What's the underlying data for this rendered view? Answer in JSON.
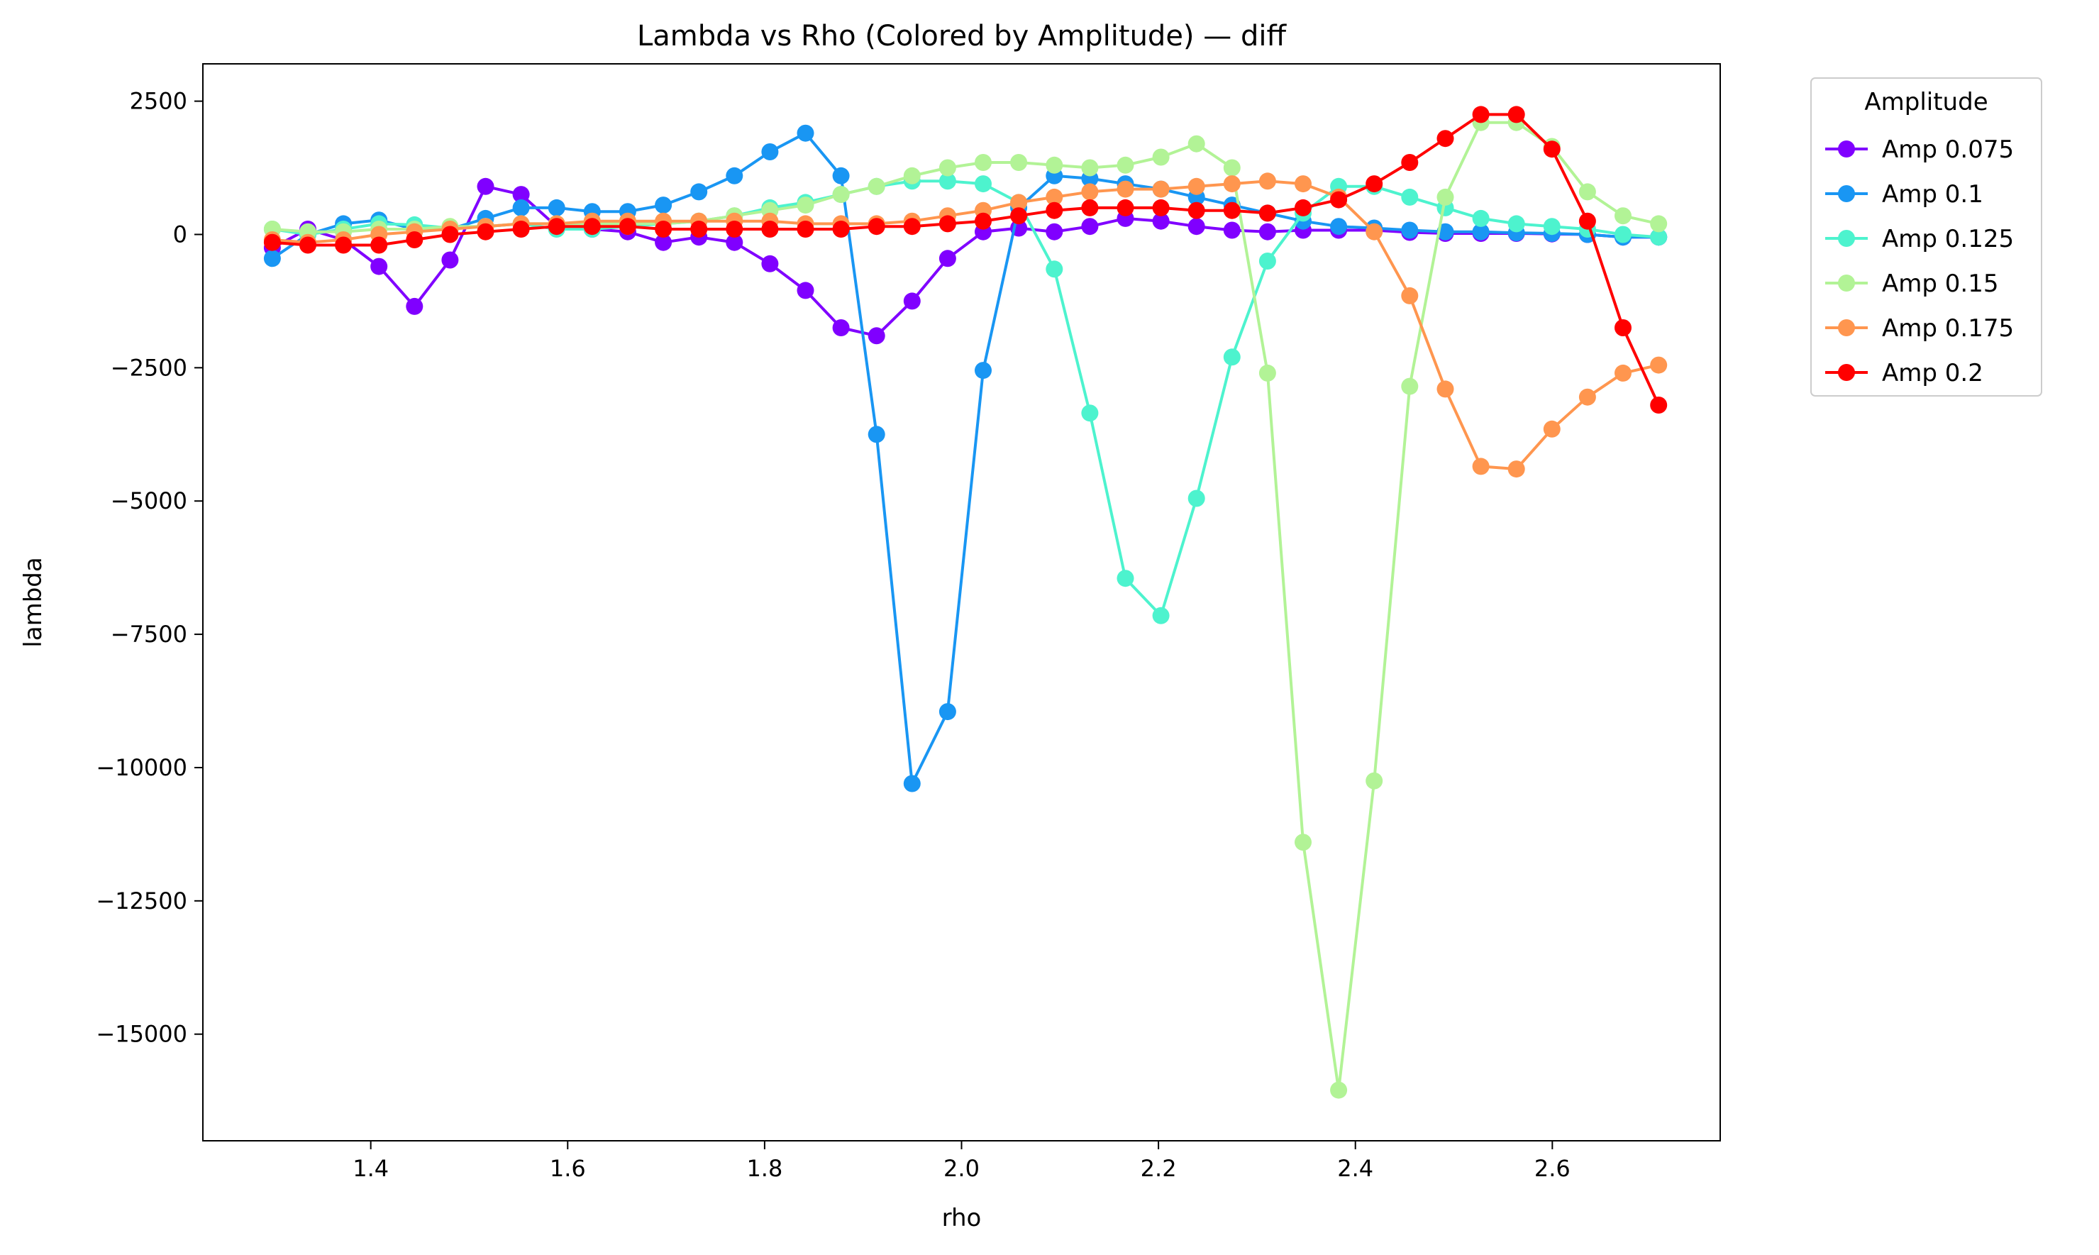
{
  "chart_data": {
    "type": "line",
    "title": "Lambda vs Rho (Colored by Amplitude) — diff",
    "xlabel": "rho",
    "ylabel": "lambda",
    "xlim": [
      1.2295,
      2.7705
    ],
    "ylim": [
      -17000,
      3200
    ],
    "xticks": [
      1.4,
      1.6,
      1.8,
      2.0,
      2.2,
      2.4,
      2.6
    ],
    "xtick_labels": [
      "1.4",
      "1.6",
      "1.8",
      "2.0",
      "2.2",
      "2.4",
      "2.6"
    ],
    "yticks": [
      2500,
      0,
      -2500,
      -5000,
      -7500,
      -10000,
      -12500,
      -15000
    ],
    "ytick_labels": [
      "2500",
      "0",
      "−2500",
      "−5000",
      "−7500",
      "−10000",
      "−12500",
      "−15000"
    ],
    "grid": false,
    "legend": {
      "title": "Amplitude",
      "position": "outside-top-right"
    },
    "x": [
      1.3,
      1.3361,
      1.3722,
      1.4083,
      1.4444,
      1.4805,
      1.5166,
      1.5527,
      1.5888,
      1.6249,
      1.661,
      1.6971,
      1.7332,
      1.7693,
      1.8054,
      1.8415,
      1.8776,
      1.9137,
      1.9498,
      1.9859,
      2.022,
      2.0581,
      2.0942,
      2.1303,
      2.1664,
      2.2025,
      2.2386,
      2.2747,
      2.3108,
      2.3469,
      2.383,
      2.4191,
      2.4552,
      2.4913,
      2.5274,
      2.5635,
      2.5996,
      2.6357,
      2.6718,
      2.708
    ],
    "series": [
      {
        "name": "Amp 0.075",
        "color": "#8000ff",
        "values": [
          -250,
          100,
          -100,
          -600,
          -1350,
          -480,
          900,
          750,
          150,
          100,
          50,
          -150,
          -50,
          -150,
          -550,
          -1050,
          -1750,
          -1900,
          -1250,
          -450,
          50,
          120,
          50,
          150,
          300,
          250,
          150,
          80,
          50,
          80,
          80,
          80,
          40,
          20,
          20,
          20,
          10,
          0,
          -50,
          -50
        ]
      },
      {
        "name": "Amp 0.1",
        "color": "#1996f3",
        "values": [
          -450,
          0,
          200,
          270,
          100,
          100,
          300,
          500,
          500,
          430,
          430,
          550,
          800,
          1100,
          1550,
          1900,
          1100,
          -3750,
          -10300,
          -8950,
          -2550,
          500,
          1100,
          1050,
          950,
          850,
          700,
          550,
          400,
          250,
          150,
          120,
          80,
          50,
          50,
          30,
          20,
          0,
          -50,
          -50
        ]
      },
      {
        "name": "Amp 0.125",
        "color": "#4df3ce",
        "values": [
          100,
          0,
          100,
          200,
          180,
          120,
          150,
          200,
          100,
          100,
          150,
          200,
          250,
          350,
          500,
          600,
          750,
          900,
          1000,
          1000,
          950,
          600,
          -650,
          -3350,
          -6450,
          -7150,
          -4950,
          -2300,
          -500,
          400,
          900,
          900,
          700,
          500,
          300,
          200,
          150,
          100,
          0,
          -50
        ]
      },
      {
        "name": "Amp 0.15",
        "color": "#b2f396",
        "values": [
          100,
          50,
          50,
          100,
          100,
          150,
          150,
          200,
          200,
          200,
          200,
          200,
          250,
          350,
          450,
          550,
          750,
          900,
          1100,
          1250,
          1350,
          1350,
          1300,
          1250,
          1300,
          1450,
          1700,
          1250,
          -2600,
          -11400,
          -16050,
          -10250,
          -2850,
          700,
          2100,
          2100,
          1650,
          800,
          350,
          200
        ]
      },
      {
        "name": "Amp 0.175",
        "color": "#ff964f",
        "values": [
          -100,
          -150,
          -100,
          0,
          50,
          100,
          150,
          200,
          200,
          250,
          250,
          250,
          250,
          250,
          250,
          200,
          200,
          200,
          250,
          350,
          450,
          600,
          700,
          800,
          850,
          850,
          900,
          950,
          1000,
          950,
          700,
          50,
          -1150,
          -2900,
          -4350,
          -4400,
          -3650,
          -3050,
          -2600,
          -2450
        ]
      },
      {
        "name": "Amp 0.2",
        "color": "#ff0000",
        "values": [
          -150,
          -200,
          -200,
          -200,
          -100,
          0,
          50,
          100,
          150,
          150,
          150,
          100,
          100,
          100,
          100,
          100,
          100,
          150,
          150,
          200,
          250,
          350,
          450,
          500,
          500,
          500,
          450,
          450,
          400,
          500,
          650,
          950,
          1350,
          1800,
          2250,
          2250,
          1600,
          250,
          -1750,
          -3200
        ]
      }
    ]
  }
}
